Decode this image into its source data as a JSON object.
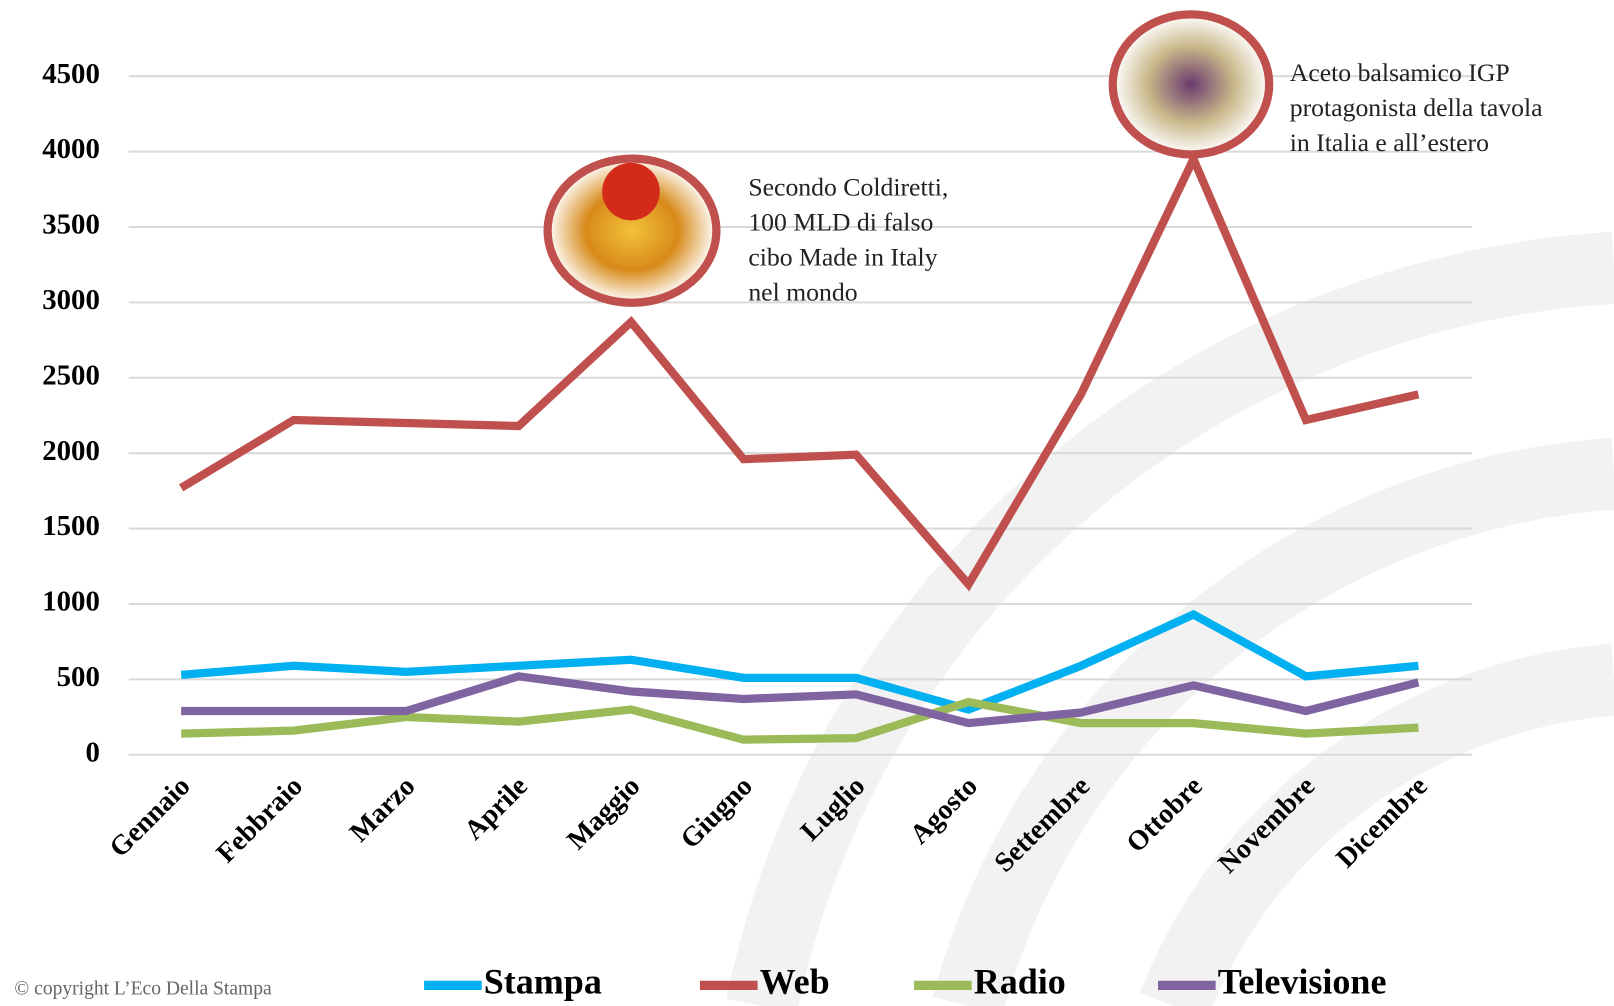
{
  "chart_data": {
    "type": "line",
    "categories": [
      "Gennaio",
      "Febbraio",
      "Marzo",
      "Aprile",
      "Maggio",
      "Giugno",
      "Luglio",
      "Agosto",
      "Settembre",
      "Ottobre",
      "Novembre",
      "Dicembre"
    ],
    "series": [
      {
        "name": "Stampa",
        "color": "#00b0f0",
        "values": [
          530,
          590,
          550,
          590,
          630,
          510,
          510,
          300,
          590,
          930,
          520,
          590
        ]
      },
      {
        "name": "Web",
        "color": "#c0504d",
        "values": [
          1770,
          2220,
          2200,
          2180,
          2870,
          1960,
          1990,
          1130,
          2390,
          3950,
          2220,
          2390
        ]
      },
      {
        "name": "Radio",
        "color": "#9bbb59",
        "values": [
          140,
          160,
          250,
          220,
          300,
          100,
          110,
          350,
          210,
          210,
          140,
          180
        ]
      },
      {
        "name": "Televisione",
        "color": "#8064a2",
        "values": [
          290,
          290,
          290,
          520,
          420,
          370,
          400,
          210,
          280,
          460,
          290,
          480
        ]
      }
    ],
    "ylim": [
      0,
      4500
    ],
    "yticks": [
      0,
      500,
      1000,
      1500,
      2000,
      2500,
      3000,
      3500,
      4000,
      4500
    ],
    "grid": true,
    "annotations": [
      {
        "category": "Maggio",
        "lines": [
          "Secondo Coldiretti,",
          "100 MLD di falso",
          "cibo Made in Italy",
          "nel mondo"
        ]
      },
      {
        "category": "Ottobre",
        "lines": [
          "Aceto balsamico IGP",
          "protagonista della tavola",
          "in Italia e all’estero"
        ]
      }
    ],
    "footer": "© copyright L’Eco Della Stampa"
  }
}
